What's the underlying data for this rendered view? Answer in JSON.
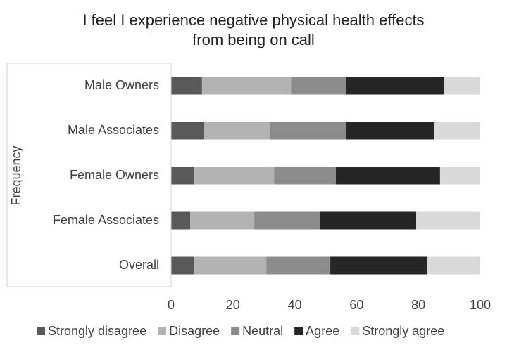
{
  "chart_data": {
    "type": "stacked_barh",
    "title": [
      "I feel I experience negative physical health effects",
      "from being on call"
    ],
    "y_label": "Frequency",
    "categories": [
      "Male Owners",
      "Male Associates",
      "Female Owners",
      "Female Associates",
      "Overall"
    ],
    "series": [
      {
        "name": "Strongly disagree",
        "color": "#595959",
        "values": [
          10,
          10.5,
          7.5,
          6.2,
          7.5
        ]
      },
      {
        "name": "Disagree",
        "color": "#b3b3b3",
        "values": [
          28.8,
          21.6,
          25.8,
          20.7,
          23.3
        ]
      },
      {
        "name": "Neutral",
        "color": "#8c8c8c",
        "values": [
          17.7,
          24.6,
          20.0,
          21.2,
          20.7
        ]
      },
      {
        "name": "Agree",
        "color": "#262626",
        "values": [
          31.7,
          28.3,
          33.7,
          31.2,
          31.4
        ]
      },
      {
        "name": "Strongly agree",
        "color": "#d9d9d9",
        "values": [
          11.8,
          15.0,
          13.0,
          20.7,
          17.1
        ]
      }
    ],
    "xlim": [
      0,
      100
    ],
    "xticks": [
      0,
      20,
      40,
      60,
      80,
      100
    ],
    "grid": false,
    "legend": "bottom"
  }
}
